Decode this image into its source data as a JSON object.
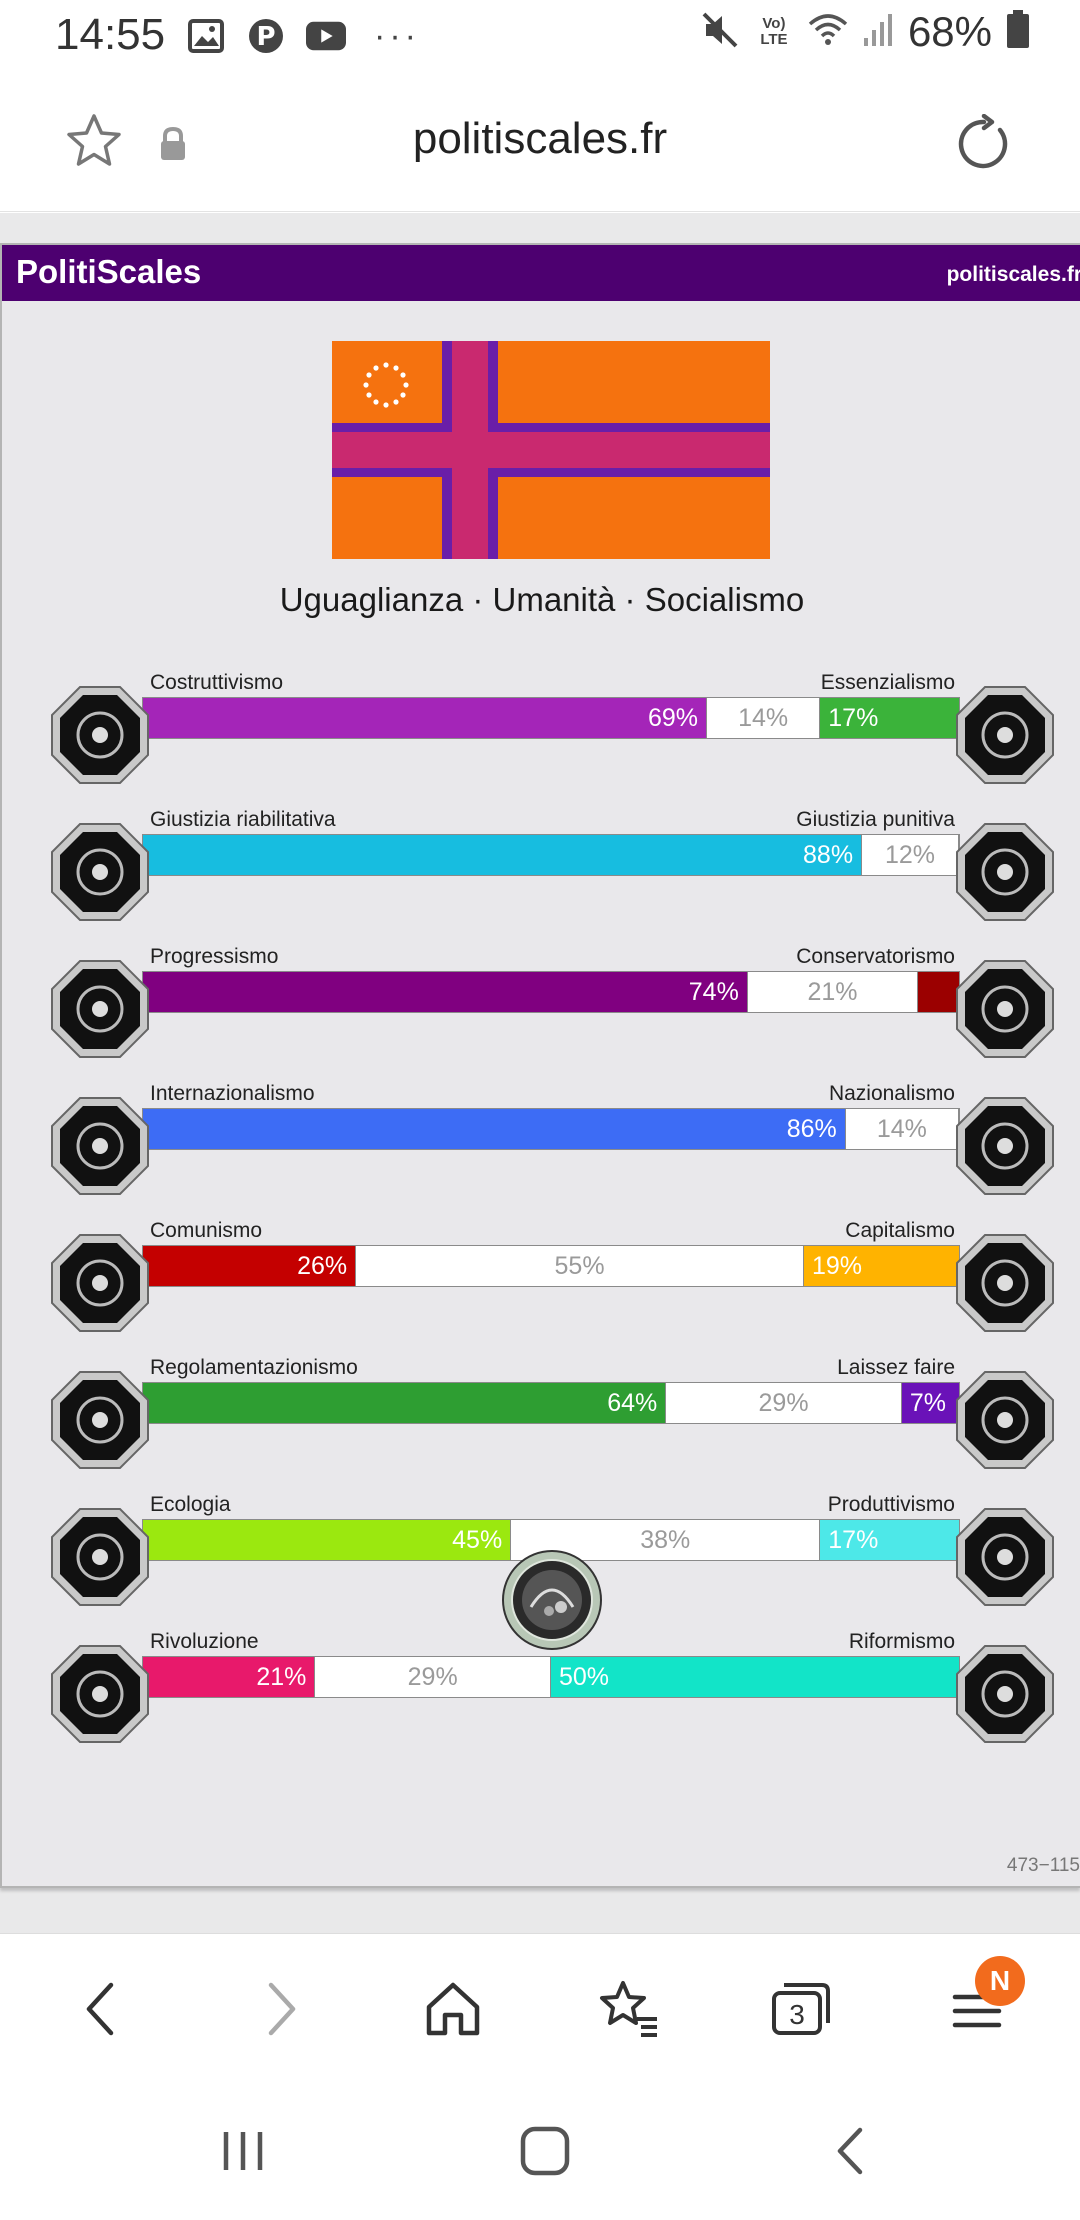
{
  "status_bar": {
    "time": "14:55",
    "notification_icons": [
      "gallery-icon",
      "pinterest-icon",
      "youtube-icon"
    ],
    "more": "···",
    "lte": "Vo) LTE",
    "battery": "68%"
  },
  "address_bar": {
    "url": "politiscales.fr"
  },
  "page": {
    "header_title": "PolitiScales",
    "header_site": "politiscales.fr",
    "slogan": "Uguaglianza · Umanità · Socialismo",
    "code": "473−115",
    "axes": [
      {
        "left": "Costruttivismo",
        "right": "Essenzialismo",
        "l": 69,
        "m": 14,
        "r": 17,
        "lpct": "69%",
        "mpct": "14%",
        "rpct": "17%",
        "lcolor": "#a425b8",
        "rcolor": "#3bb33a",
        "licon": "eye-icon",
        "ricon": "flower-icon"
      },
      {
        "left": "Giustizia riabilitativa",
        "right": "Giustizia punitiva",
        "l": 88,
        "m": 12,
        "r": 0,
        "lpct": "88%",
        "mpct": "12%",
        "rpct": "",
        "lcolor": "#17bde0",
        "rcolor": "#7a7a7a",
        "licon": "handshake-icon",
        "ricon": "prison-bars-icon"
      },
      {
        "left": "Progressismo",
        "right": "Conservatorismo",
        "l": 74,
        "m": 21,
        "r": 5,
        "lpct": "74%",
        "mpct": "21%",
        "rpct": "",
        "lcolor": "#800080",
        "rcolor": "#9b0000",
        "licon": "rocket-hand-icon",
        "ricon": "quill-icon"
      },
      {
        "left": "Internazionalismo",
        "right": "Nazionalismo",
        "l": 86,
        "m": 14,
        "r": 0,
        "lpct": "86%",
        "mpct": "14%",
        "rpct": "",
        "lcolor": "#3d6cf5",
        "rcolor": "#7a7a7a",
        "licon": "globe-icon",
        "ricon": "flag-icon"
      },
      {
        "left": "Comunismo",
        "right": "Capitalismo",
        "l": 26,
        "m": 55,
        "r": 19,
        "lpct": "26%",
        "mpct": "55%",
        "rpct": "19%",
        "lcolor": "#c40000",
        "rcolor": "#ffb300",
        "licon": "hammer-sickle-icon",
        "ricon": "money-bag-icon"
      },
      {
        "left": "Regolamentazionismo",
        "right": "Laissez faire",
        "l": 64,
        "m": 29,
        "r": 7,
        "lpct": "64%",
        "mpct": "29%",
        "rpct": "7%",
        "lcolor": "#2e9e32",
        "rcolor": "#6a12b8",
        "licon": "ruler-icon",
        "ricon": "butterfly-icon"
      },
      {
        "left": "Ecologia",
        "right": "Produttivismo",
        "l": 45,
        "m": 38,
        "r": 17,
        "lpct": "45%",
        "mpct": "38%",
        "rpct": "17%",
        "lcolor": "#9be80f",
        "rcolor": "#4de8e8",
        "licon": "plant-icon",
        "ricon": "factory-icon"
      },
      {
        "left": "Rivoluzione",
        "right": "Riformismo",
        "l": 21,
        "m": 29,
        "r": 50,
        "lpct": "21%",
        "mpct": "29%",
        "rpct": "50%",
        "lcolor": "#e8196b",
        "rcolor": "#12e4c8",
        "licon": "fist-icon",
        "ricon": "parliament-icon"
      }
    ]
  },
  "toolbar": {
    "tabs_count": "3",
    "badge": "N"
  }
}
